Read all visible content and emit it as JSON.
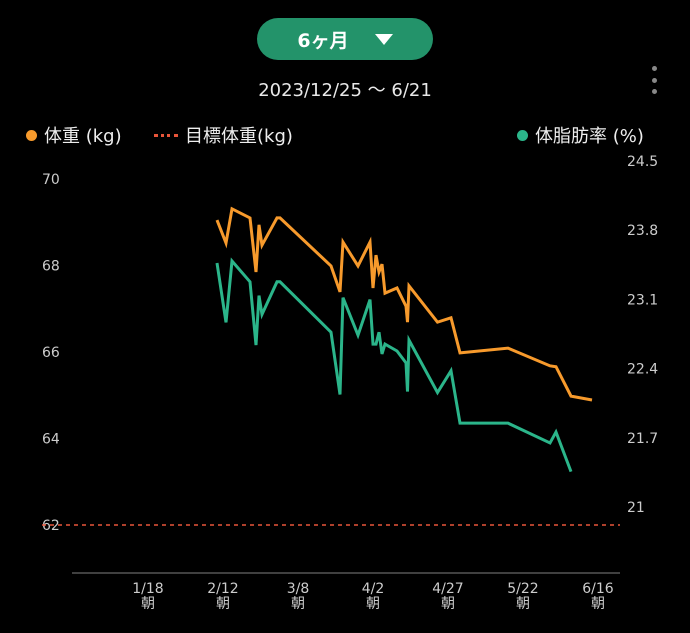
{
  "header": {
    "period_label": "6ヶ月",
    "date_range": "2023/12/25 〜 6/21"
  },
  "legend": {
    "weight": "体重 (kg)",
    "target": "目標体重(kg)",
    "fat": "体脂肪率 (%)"
  },
  "colors": {
    "weight": "#f79a2c",
    "fat": "#2bb58a",
    "target": "#e8553a",
    "button": "#23936a"
  },
  "chart_data": {
    "type": "line",
    "x_unit": "days since 2023/12/25",
    "x_ticks": [
      {
        "day": 24,
        "label": "1/18",
        "sub": "朝"
      },
      {
        "day": 49,
        "label": "2/12",
        "sub": "朝"
      },
      {
        "day": 74,
        "label": "3/8",
        "sub": "朝"
      },
      {
        "day": 99,
        "label": "4/2",
        "sub": "朝"
      },
      {
        "day": 124,
        "label": "4/27",
        "sub": "朝"
      },
      {
        "day": 149,
        "label": "5/22",
        "sub": "朝"
      },
      {
        "day": 174,
        "label": "6/16",
        "sub": "朝"
      }
    ],
    "left_axis": {
      "ticks": [
        "70",
        "68",
        "66",
        "64",
        "62"
      ],
      "ylim": [
        62,
        70
      ]
    },
    "right_axis": {
      "ticks": [
        "24.5",
        "23.8",
        "23.1",
        "22.4",
        "21.7",
        "21"
      ],
      "ylim": [
        21,
        24.5
      ]
    },
    "target_weight": 62,
    "series": [
      {
        "name": "体重 (kg)",
        "axis": "left",
        "x": [
          47,
          50,
          52,
          58,
          60,
          61,
          62,
          67,
          68,
          85,
          88,
          89,
          94,
          98,
          99,
          100,
          101,
          102,
          103,
          107,
          110,
          110.5,
          111,
          120.5,
          125,
          128,
          144,
          158,
          160,
          165,
          172
        ],
        "y": [
          69.05,
          68.52,
          69.31,
          69.1,
          67.85,
          68.94,
          68.47,
          69.1,
          69.1,
          67.99,
          67.39,
          68.54,
          67.99,
          68.54,
          67.48,
          68.24,
          67.85,
          68.03,
          67.36,
          67.48,
          67.06,
          66.69,
          67.53,
          66.69,
          66.79,
          65.98,
          66.09,
          65.68,
          65.66,
          64.98,
          64.89
        ]
      },
      {
        "name": "体脂肪率 (%)",
        "axis": "right",
        "x": [
          47,
          50,
          52,
          58,
          60,
          61,
          62,
          67,
          68,
          85,
          88,
          89,
          94,
          98,
          99,
          100,
          101,
          102,
          103,
          107,
          110,
          110.5,
          111,
          120.5,
          125,
          128,
          144,
          158,
          160,
          165
        ],
        "y": [
          23.65,
          23.05,
          23.67,
          23.46,
          22.82,
          23.32,
          23.13,
          23.46,
          23.46,
          22.95,
          22.32,
          23.3,
          22.92,
          23.28,
          22.83,
          22.83,
          22.95,
          22.73,
          22.83,
          22.76,
          22.64,
          22.35,
          22.87,
          22.34,
          22.56,
          22.03,
          22.03,
          21.83,
          21.94,
          21.54
        ]
      }
    ]
  }
}
